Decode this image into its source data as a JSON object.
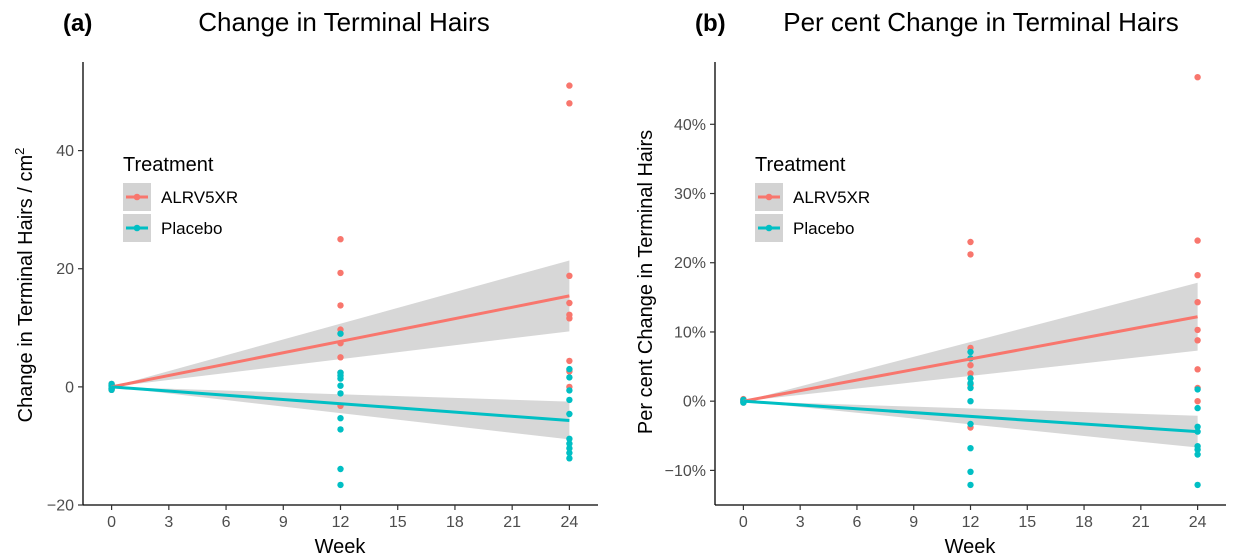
{
  "colors": {
    "ALRV5XR": "#F8766D",
    "Placebo": "#00BFC4",
    "ribbon": "#d3d3d3"
  },
  "chart_data": [
    {
      "type": "scatter",
      "panel_tag": "(a)",
      "title": "Change in Terminal Hairs",
      "xlabel": "Week",
      "ylabel": "Change in Terminal Hairs / cm",
      "ylabel_sup": "2",
      "xlim": [
        -1.5,
        25.5
      ],
      "ylim": [
        -20,
        55
      ],
      "x_ticks": [
        0,
        3,
        6,
        9,
        12,
        15,
        18,
        21,
        24
      ],
      "x_tick_labels": [
        "0",
        "3",
        "6",
        "9",
        "12",
        "15",
        "18",
        "21",
        "24"
      ],
      "y_ticks": [
        -20,
        0,
        20,
        40
      ],
      "y_tick_labels": [
        "−20",
        "0",
        "20",
        "40"
      ],
      "legend": {
        "title": "Treatment",
        "position": "top-left",
        "entries": [
          "ALRV5XR",
          "Placebo"
        ]
      },
      "series": [
        {
          "name": "ALRV5XR",
          "points": [
            [
              0,
              0.3
            ],
            [
              0,
              0
            ],
            [
              0,
              -0.3
            ],
            [
              0,
              0.5
            ],
            [
              0,
              -0.5
            ],
            [
              12,
              25
            ],
            [
              12,
              19.3
            ],
            [
              12,
              13.8
            ],
            [
              12,
              9.7
            ],
            [
              12,
              7.4
            ],
            [
              12,
              5
            ],
            [
              12,
              2.4
            ],
            [
              12,
              -3.2
            ],
            [
              24,
              51
            ],
            [
              24,
              48
            ],
            [
              24,
              18.8
            ],
            [
              24,
              14.2
            ],
            [
              24,
              12.2
            ],
            [
              24,
              11.6
            ],
            [
              24,
              4.4
            ],
            [
              24,
              2.6
            ],
            [
              24,
              0
            ]
          ],
          "fit": {
            "x": [
              0,
              24
            ],
            "y": [
              0,
              15.4
            ],
            "lower_24": 9.4,
            "upper_24": 21.4
          }
        },
        {
          "name": "Placebo",
          "points": [
            [
              0,
              0.3
            ],
            [
              0,
              0
            ],
            [
              0,
              -0.3
            ],
            [
              0,
              0.5
            ],
            [
              0,
              -0.5
            ],
            [
              12,
              9
            ],
            [
              12,
              2.4
            ],
            [
              12,
              1.9
            ],
            [
              12,
              1.4
            ],
            [
              12,
              0.2
            ],
            [
              12,
              -1.1
            ],
            [
              12,
              -5.3
            ],
            [
              12,
              -7.2
            ],
            [
              12,
              -13.9
            ],
            [
              12,
              -16.6
            ],
            [
              24,
              3
            ],
            [
              24,
              1.6
            ],
            [
              24,
              -0.6
            ],
            [
              24,
              -2.2
            ],
            [
              24,
              -4.6
            ],
            [
              24,
              -8.8
            ],
            [
              24,
              -9.6
            ],
            [
              24,
              -10.4
            ],
            [
              24,
              -11.2
            ],
            [
              24,
              -12.1
            ]
          ],
          "fit": {
            "x": [
              0,
              24
            ],
            "y": [
              0,
              -5.7
            ],
            "lower_24": -8.9,
            "upper_24": -2.5
          }
        }
      ]
    },
    {
      "type": "scatter",
      "panel_tag": "(b)",
      "title": "Per cent Change in Terminal Hairs",
      "xlabel": "Week",
      "ylabel": "Per cent Change in Terminal Hairs",
      "xlim": [
        -1.5,
        25.5
      ],
      "ylim": [
        -15,
        49
      ],
      "x_ticks": [
        0,
        3,
        6,
        9,
        12,
        15,
        18,
        21,
        24
      ],
      "x_tick_labels": [
        "0",
        "3",
        "6",
        "9",
        "12",
        "15",
        "18",
        "21",
        "24"
      ],
      "y_ticks": [
        -10,
        0,
        10,
        20,
        30,
        40
      ],
      "y_tick_labels": [
        "−10%",
        "0%",
        "10%",
        "20%",
        "30%",
        "40%"
      ],
      "legend": {
        "title": "Treatment",
        "position": "top-left",
        "entries": [
          "ALRV5XR",
          "Placebo"
        ]
      },
      "series": [
        {
          "name": "ALRV5XR",
          "points": [
            [
              0,
              0.2
            ],
            [
              0,
              0
            ],
            [
              0,
              -0.2
            ],
            [
              0,
              0.3
            ],
            [
              12,
              23
            ],
            [
              12,
              21.2
            ],
            [
              12,
              7.7
            ],
            [
              12,
              5.2
            ],
            [
              12,
              4
            ],
            [
              12,
              2.4
            ],
            [
              12,
              -3.8
            ],
            [
              24,
              46.8
            ],
            [
              24,
              23.2
            ],
            [
              24,
              18.2
            ],
            [
              24,
              14.3
            ],
            [
              24,
              10.3
            ],
            [
              24,
              8.8
            ],
            [
              24,
              4.6
            ],
            [
              24,
              1.9
            ],
            [
              24,
              0
            ]
          ],
          "fit": {
            "x": [
              0,
              24
            ],
            "y": [
              0,
              12.2
            ],
            "lower_24": 7.3,
            "upper_24": 17.1
          }
        },
        {
          "name": "Placebo",
          "points": [
            [
              0,
              0.2
            ],
            [
              0,
              0
            ],
            [
              0,
              -0.2
            ],
            [
              12,
              7.1
            ],
            [
              12,
              6.2
            ],
            [
              12,
              3.3
            ],
            [
              12,
              2.6
            ],
            [
              12,
              1.9
            ],
            [
              12,
              0
            ],
            [
              12,
              -3.3
            ],
            [
              12,
              -6.8
            ],
            [
              12,
              -10.2
            ],
            [
              12,
              -12.1
            ],
            [
              24,
              1.7
            ],
            [
              24,
              -1
            ],
            [
              24,
              -3.7
            ],
            [
              24,
              -4.4
            ],
            [
              24,
              -6.5
            ],
            [
              24,
              -7
            ],
            [
              24,
              -7.7
            ],
            [
              24,
              -12.1
            ]
          ],
          "fit": {
            "x": [
              0,
              24
            ],
            "y": [
              0,
              -4.4
            ],
            "lower_24": -6.7,
            "upper_24": -2.1
          }
        }
      ]
    }
  ]
}
